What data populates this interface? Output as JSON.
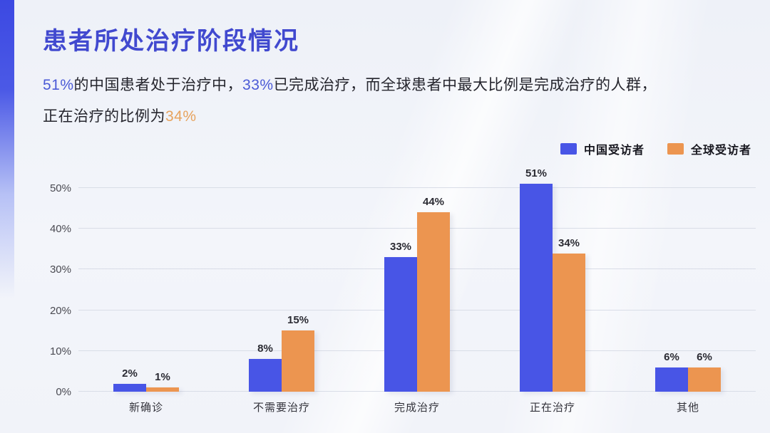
{
  "page": {
    "title": "患者所处治疗阶段情况"
  },
  "subtitle": {
    "hl1": "51%",
    "seg1": "的中国患者处于治疗中，",
    "hl2": "33%",
    "seg2": "已完成治疗，而全球患者中最大比例是完成治疗的人群，",
    "seg3": "正在治疗的比例为",
    "hl3": "34%"
  },
  "legend": {
    "items": [
      {
        "label": "中国受访者",
        "color": "#4855e6"
      },
      {
        "label": "全球受访者",
        "color": "#ec9550"
      }
    ]
  },
  "colors": {
    "title": "#4149cf",
    "china_series": "#4855e6",
    "global_series": "#ec9550",
    "gridline": "#d9dde7",
    "highlight_blue": "#4b5ad6",
    "highlight_orange": "#e7a35e"
  },
  "chart_data": {
    "type": "bar",
    "title": "患者所处治疗阶段情况",
    "categories": [
      "新确诊",
      "不需要治疗",
      "完成治疗",
      "正在治疗",
      "其他"
    ],
    "series": [
      {
        "name": "中国受访者",
        "color": "#4855e6",
        "values": [
          2,
          8,
          33,
          51,
          6
        ]
      },
      {
        "name": "全球受访者",
        "color": "#ec9550",
        "values": [
          1,
          15,
          44,
          34,
          6
        ]
      }
    ],
    "value_label_suffix": "%",
    "yticks": [
      0,
      10,
      20,
      30,
      40,
      50
    ],
    "ytick_labels": [
      "0%",
      "10%",
      "20%",
      "30%",
      "40%",
      "50%"
    ],
    "ylim": [
      0,
      55
    ],
    "grid": true,
    "legend_position": "top-right"
  }
}
